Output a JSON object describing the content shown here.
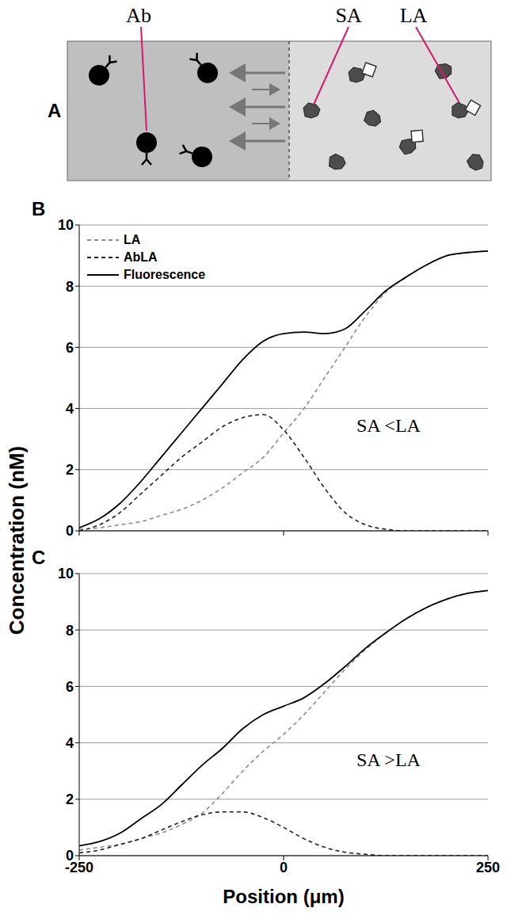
{
  "diagram": {
    "panel": "A",
    "labels": [
      "Ab",
      "SA",
      "LA"
    ]
  },
  "chart_data": [
    {
      "type": "line",
      "title": "B",
      "y_label": "Concentration (nM)",
      "annotations": [
        "SA <LA"
      ],
      "x": [
        -250,
        -225,
        -200,
        -175,
        -150,
        -125,
        -100,
        -75,
        -50,
        -25,
        0,
        25,
        50,
        75,
        100,
        125,
        150,
        175,
        200,
        225,
        250
      ],
      "series": [
        {
          "name": "LA",
          "color": "#8c8c8c",
          "line_style": "dashed",
          "values": [
            0.05,
            0.1,
            0.2,
            0.3,
            0.5,
            0.7,
            1.0,
            1.4,
            1.9,
            2.4,
            3.2,
            4.0,
            5.0,
            6.0,
            7.0,
            7.8,
            8.3,
            8.7,
            9.0,
            9.1,
            9.15
          ]
        },
        {
          "name": "AbLA",
          "color": "#222222",
          "line_style": "dashed",
          "values": [
            0.0,
            0.2,
            0.6,
            1.2,
            1.8,
            2.4,
            2.9,
            3.4,
            3.7,
            3.8,
            3.3,
            2.4,
            1.4,
            0.6,
            0.2,
            0.05,
            0.0,
            0.0,
            0.0,
            0.0,
            0.0
          ]
        },
        {
          "name": "Fluorescence",
          "color": "#000000",
          "line_style": "solid",
          "values": [
            0.1,
            0.4,
            0.9,
            1.6,
            2.4,
            3.2,
            4.0,
            4.8,
            5.6,
            6.2,
            6.45,
            6.5,
            6.45,
            6.6,
            7.2,
            7.85,
            8.3,
            8.7,
            9.0,
            9.1,
            9.15
          ]
        }
      ],
      "xlim": [
        -250,
        250
      ],
      "xticks": [
        -250,
        0,
        250
      ],
      "ylim": [
        0,
        10
      ],
      "yticks": [
        0,
        2,
        4,
        6,
        8,
        10
      ],
      "grid": true,
      "legend": "upper left",
      "tick_labels": "y"
    },
    {
      "type": "line",
      "title": "C",
      "x_label": "Position (μm)",
      "annotations": [
        "SA >LA"
      ],
      "x": [
        -250,
        -225,
        -200,
        -175,
        -150,
        -125,
        -100,
        -75,
        -50,
        -25,
        0,
        25,
        50,
        75,
        100,
        125,
        150,
        175,
        200,
        225,
        250
      ],
      "series": [
        {
          "name": "LA",
          "color": "#8c8c8c",
          "line_style": "dashed",
          "values": [
            0.2,
            0.3,
            0.4,
            0.6,
            0.8,
            1.1,
            1.5,
            2.2,
            3.0,
            3.7,
            4.3,
            5.0,
            5.8,
            6.6,
            7.3,
            7.9,
            8.4,
            8.8,
            9.1,
            9.3,
            9.4
          ]
        },
        {
          "name": "AbLA",
          "color": "#222222",
          "line_style": "dashed",
          "values": [
            0.1,
            0.2,
            0.4,
            0.6,
            0.9,
            1.2,
            1.45,
            1.55,
            1.55,
            1.35,
            1.0,
            0.6,
            0.3,
            0.12,
            0.05,
            0.0,
            0.0,
            0.0,
            0.0,
            0.0,
            0.0
          ]
        },
        {
          "name": "Fluorescence",
          "color": "#000000",
          "line_style": "solid",
          "values": [
            0.35,
            0.5,
            0.8,
            1.3,
            1.8,
            2.5,
            3.2,
            3.8,
            4.5,
            5.0,
            5.3,
            5.6,
            6.1,
            6.7,
            7.35,
            7.9,
            8.4,
            8.8,
            9.1,
            9.3,
            9.4
          ]
        }
      ],
      "xlim": [
        -250,
        250
      ],
      "xticks": [
        -250,
        0,
        250
      ],
      "ylim": [
        0,
        10
      ],
      "yticks": [
        0,
        2,
        4,
        6,
        8,
        10
      ],
      "grid": true,
      "tick_labels": true
    }
  ]
}
